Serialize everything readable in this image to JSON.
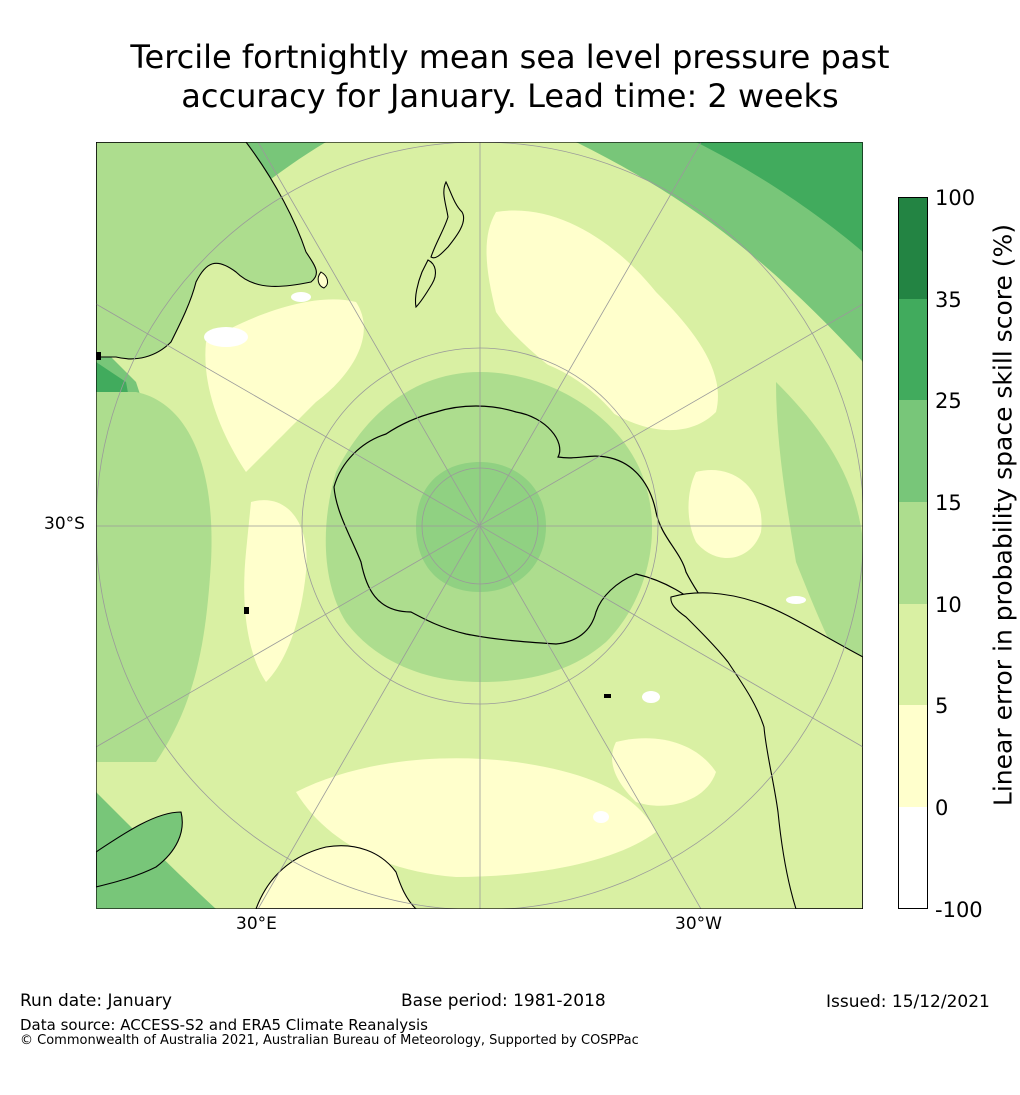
{
  "title_line1": "Tercile fortnightly mean sea level pressure past",
  "title_line2": "accuracy for January. Lead time: 2 weeks",
  "map": {
    "projection": "south-polar-stereographic",
    "lat_labels": [
      "30°S"
    ],
    "lon_labels": [
      "30°E",
      "30°W"
    ],
    "land_outline_color": "#000000",
    "gridline_color": "#9a9a9a"
  },
  "colorbar": {
    "label": "Linear error in probability space skill score (%)",
    "ticks": [
      "100",
      "35",
      "25",
      "15",
      "10",
      "5",
      "0",
      "-100"
    ],
    "bins": [
      {
        "from": "-100",
        "to": "0",
        "color": "#ffffff"
      },
      {
        "from": "0",
        "to": "5",
        "color": "#ffffcc"
      },
      {
        "from": "5",
        "to": "10",
        "color": "#d9f0a3"
      },
      {
        "from": "10",
        "to": "15",
        "color": "#addd8e"
      },
      {
        "from": "15",
        "to": "25",
        "color": "#78c679"
      },
      {
        "from": "25",
        "to": "35",
        "color": "#41ab5d"
      },
      {
        "from": "35",
        "to": "100",
        "color": "#238443"
      }
    ]
  },
  "footer": {
    "run_date": "Run date: January",
    "base_period": "Base period: 1981-2018",
    "issued": "Issued: 15/12/2021",
    "data_source": "Data source: ACCESS-S2 and ERA5 Climate Reanalysis",
    "copyright": "© Commonwealth of Australia 2021, Australian Bureau of Meteorology, Supported by COSPPac"
  }
}
